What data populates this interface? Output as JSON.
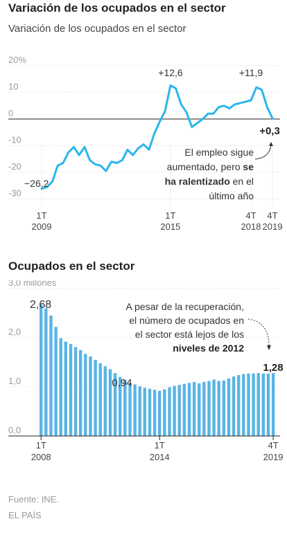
{
  "header": {
    "title": "Variación de los ocupados en el sector",
    "subtitle": "Variación de los ocupados en el sector"
  },
  "chart_data": [
    {
      "type": "line",
      "title": "Variación de los ocupados en el sector",
      "ylim": [
        -30,
        20
      ],
      "ytick_labels": [
        "20%",
        "10",
        "0",
        "-10",
        "-20",
        "-30"
      ],
      "yticks": [
        20,
        10,
        0,
        -10,
        -20,
        -30
      ],
      "x_labels": [
        {
          "quarter": "1T",
          "year": "2009"
        },
        {
          "quarter": "1T",
          "year": "2015"
        },
        {
          "quarter": "4T",
          "year": "2018"
        },
        {
          "quarter": "4T",
          "year": "2019"
        }
      ],
      "x": [
        "2009-1T",
        "2009-2T",
        "2009-3T",
        "2009-4T",
        "2010-1T",
        "2010-2T",
        "2010-3T",
        "2010-4T",
        "2011-1T",
        "2011-2T",
        "2011-3T",
        "2011-4T",
        "2012-1T",
        "2012-2T",
        "2012-3T",
        "2012-4T",
        "2013-1T",
        "2013-2T",
        "2013-3T",
        "2013-4T",
        "2014-1T",
        "2014-2T",
        "2014-3T",
        "2014-4T",
        "2015-1T",
        "2015-2T",
        "2015-3T",
        "2015-4T",
        "2016-1T",
        "2016-2T",
        "2016-3T",
        "2016-4T",
        "2017-1T",
        "2017-2T",
        "2017-3T",
        "2017-4T",
        "2018-1T",
        "2018-2T",
        "2018-3T",
        "2018-4T",
        "2019-1T",
        "2019-2T",
        "2019-3T",
        "2019-4T"
      ],
      "values": [
        -26.2,
        -25.5,
        -23.5,
        -17.5,
        -16.5,
        -12.5,
        -10.5,
        -13.5,
        -10.5,
        -15.5,
        -17,
        -17.5,
        -19.5,
        -16,
        -16.5,
        -15.5,
        -11.5,
        -13.5,
        -11,
        -9.5,
        -11.5,
        -5.5,
        -1,
        3,
        12.6,
        11.5,
        5.5,
        2.5,
        -3,
        -1.5,
        0,
        2,
        2,
        4.5,
        5,
        4,
        5.5,
        6,
        6.5,
        7,
        11.9,
        11,
        4.5,
        0.3
      ],
      "annotations": {
        "min_label": "−26,2",
        "peak1_label": "+12,6",
        "peak2_label": "+11,9",
        "last_label": "+0,3",
        "note_lines": [
          "El empleo sigue",
          "aumentado, pero",
          "se",
          "ha ralentizado",
          "en el",
          "último año"
        ]
      },
      "color": "#29b6ea"
    },
    {
      "type": "bar",
      "title": "Ocupados en el sector",
      "ylim": [
        0,
        3.0
      ],
      "yticks": [
        3.0,
        2.0,
        1.0,
        0.0
      ],
      "ytick_labels": [
        "3,0 millones",
        "2,0",
        "1,0",
        "0,0"
      ],
      "x_labels": [
        {
          "quarter": "1T",
          "year": "2008"
        },
        {
          "quarter": "1T",
          "year": "2014"
        },
        {
          "quarter": "4T",
          "year": "2019"
        }
      ],
      "categories": [
        "2008-1T",
        "2008-2T",
        "2008-3T",
        "2008-4T",
        "2009-1T",
        "2009-2T",
        "2009-3T",
        "2009-4T",
        "2010-1T",
        "2010-2T",
        "2010-3T",
        "2010-4T",
        "2011-1T",
        "2011-2T",
        "2011-3T",
        "2011-4T",
        "2012-1T",
        "2012-2T",
        "2012-3T",
        "2012-4T",
        "2013-1T",
        "2013-2T",
        "2013-3T",
        "2013-4T",
        "2014-1T",
        "2014-2T",
        "2014-3T",
        "2014-4T",
        "2015-1T",
        "2015-2T",
        "2015-3T",
        "2015-4T",
        "2016-1T",
        "2016-2T",
        "2016-3T",
        "2016-4T",
        "2017-1T",
        "2017-2T",
        "2017-3T",
        "2017-4T",
        "2018-1T",
        "2018-2T",
        "2018-3T",
        "2018-4T",
        "2019-1T",
        "2019-2T",
        "2019-3T",
        "2019-4T"
      ],
      "values": [
        2.68,
        2.6,
        2.45,
        2.22,
        1.99,
        1.92,
        1.87,
        1.81,
        1.75,
        1.67,
        1.62,
        1.55,
        1.48,
        1.42,
        1.36,
        1.28,
        1.2,
        1.14,
        1.08,
        1.05,
        1.01,
        0.98,
        0.96,
        0.94,
        0.92,
        0.95,
        0.99,
        1.02,
        1.04,
        1.06,
        1.08,
        1.1,
        1.07,
        1.1,
        1.12,
        1.15,
        1.12,
        1.13,
        1.17,
        1.21,
        1.24,
        1.26,
        1.27,
        1.27,
        1.28,
        1.27,
        1.27,
        1.28
      ],
      "annotations": {
        "first_label": "2,68",
        "min_label": "0,94",
        "last_label": "1,28",
        "note_lines": [
          "A pesar de la recuperación,",
          "el número de ocupados en",
          "el sector está lejos de los",
          "niveles de 2012"
        ]
      },
      "color": "#5ab4e5"
    }
  ],
  "footer": {
    "source": "Fuente: INE.",
    "brand": "EL PAÍS"
  }
}
